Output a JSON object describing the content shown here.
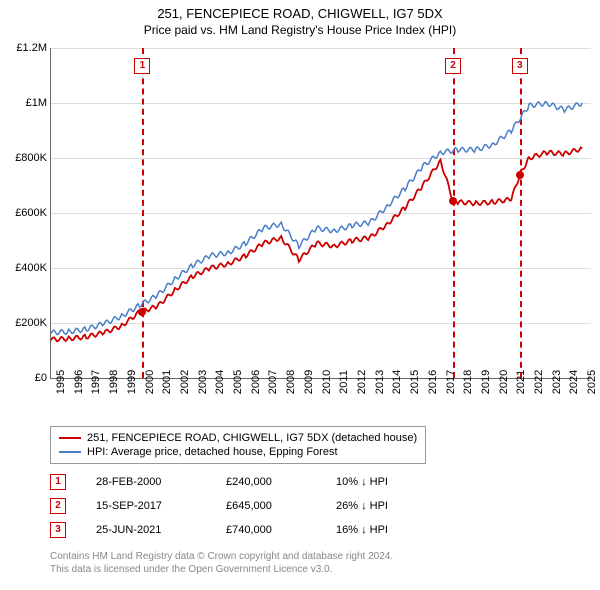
{
  "title": "251, FENCEPIECE ROAD, CHIGWELL, IG7 5DX",
  "subtitle": "Price paid vs. HM Land Registry's House Price Index (HPI)",
  "chart": {
    "type": "line",
    "background_color": "#ffffff",
    "grid_color": "#dddddd",
    "axis_color": "#666666",
    "ylim": [
      0,
      1200000
    ],
    "ytick_step": 200000,
    "yticks": [
      "£0",
      "£200K",
      "£400K",
      "£600K",
      "£800K",
      "£1M",
      "£1.2M"
    ],
    "xlim": [
      1995,
      2025.5
    ],
    "xticks": [
      "1995",
      "1996",
      "1997",
      "1998",
      "1999",
      "2000",
      "2001",
      "2002",
      "2003",
      "2004",
      "2005",
      "2006",
      "2007",
      "2008",
      "2009",
      "2010",
      "2011",
      "2012",
      "2013",
      "2014",
      "2015",
      "2016",
      "2017",
      "2018",
      "2019",
      "2020",
      "2021",
      "2022",
      "2023",
      "2024",
      "2025"
    ],
    "series": [
      {
        "name": "251, FENCEPIECE ROAD, CHIGWELL, IG7 5DX (detached house)",
        "color": "#cc0000",
        "line_width": 1.8,
        "data": [
          [
            1995,
            140000
          ],
          [
            1996,
            143000
          ],
          [
            1997,
            150000
          ],
          [
            1998,
            165000
          ],
          [
            1999,
            190000
          ],
          [
            2000,
            240000
          ],
          [
            2001,
            260000
          ],
          [
            2002,
            320000
          ],
          [
            2003,
            370000
          ],
          [
            2004,
            400000
          ],
          [
            2005,
            415000
          ],
          [
            2006,
            445000
          ],
          [
            2007,
            490000
          ],
          [
            2008,
            510000
          ],
          [
            2009,
            430000
          ],
          [
            2010,
            490000
          ],
          [
            2011,
            480000
          ],
          [
            2012,
            500000
          ],
          [
            2013,
            510000
          ],
          [
            2014,
            560000
          ],
          [
            2015,
            620000
          ],
          [
            2016,
            700000
          ],
          [
            2017,
            790000
          ],
          [
            2017.71,
            645000
          ],
          [
            2018,
            640000
          ],
          [
            2019,
            635000
          ],
          [
            2020,
            640000
          ],
          [
            2021,
            650000
          ],
          [
            2021.48,
            740000
          ],
          [
            2022,
            800000
          ],
          [
            2023,
            820000
          ],
          [
            2024,
            815000
          ],
          [
            2025,
            835000
          ]
        ]
      },
      {
        "name": "HPI: Average price, detached house, Epping Forest",
        "color": "#4a7ec8",
        "line_width": 1.5,
        "data": [
          [
            1995,
            165000
          ],
          [
            1996,
            168000
          ],
          [
            1997,
            178000
          ],
          [
            1998,
            198000
          ],
          [
            1999,
            225000
          ],
          [
            2000,
            265000
          ],
          [
            2001,
            300000
          ],
          [
            2002,
            360000
          ],
          [
            2003,
            410000
          ],
          [
            2004,
            445000
          ],
          [
            2005,
            455000
          ],
          [
            2006,
            490000
          ],
          [
            2007,
            545000
          ],
          [
            2008,
            560000
          ],
          [
            2009,
            480000
          ],
          [
            2010,
            545000
          ],
          [
            2011,
            535000
          ],
          [
            2012,
            555000
          ],
          [
            2013,
            565000
          ],
          [
            2014,
            625000
          ],
          [
            2015,
            690000
          ],
          [
            2016,
            770000
          ],
          [
            2017,
            820000
          ],
          [
            2018,
            830000
          ],
          [
            2019,
            830000
          ],
          [
            2020,
            850000
          ],
          [
            2021,
            900000
          ],
          [
            2022,
            990000
          ],
          [
            2023,
            1000000
          ],
          [
            2024,
            975000
          ],
          [
            2025,
            1000000
          ]
        ]
      }
    ],
    "markers": [
      {
        "n": "1",
        "x": 2000.16,
        "date": "28-FEB-2000",
        "price": 240000,
        "price_label": "£240,000",
        "pct": "10% ↓ HPI"
      },
      {
        "n": "2",
        "x": 2017.71,
        "date": "15-SEP-2017",
        "price": 645000,
        "price_label": "£645,000",
        "pct": "26% ↓ HPI"
      },
      {
        "n": "3",
        "x": 2021.48,
        "date": "25-JUN-2021",
        "price": 740000,
        "price_label": "£740,000",
        "pct": "16% ↓ HPI"
      }
    ]
  },
  "footer": {
    "line1": "Contains HM Land Registry data © Crown copyright and database right 2024.",
    "line2": "This data is licensed under the Open Government Licence v3.0."
  }
}
